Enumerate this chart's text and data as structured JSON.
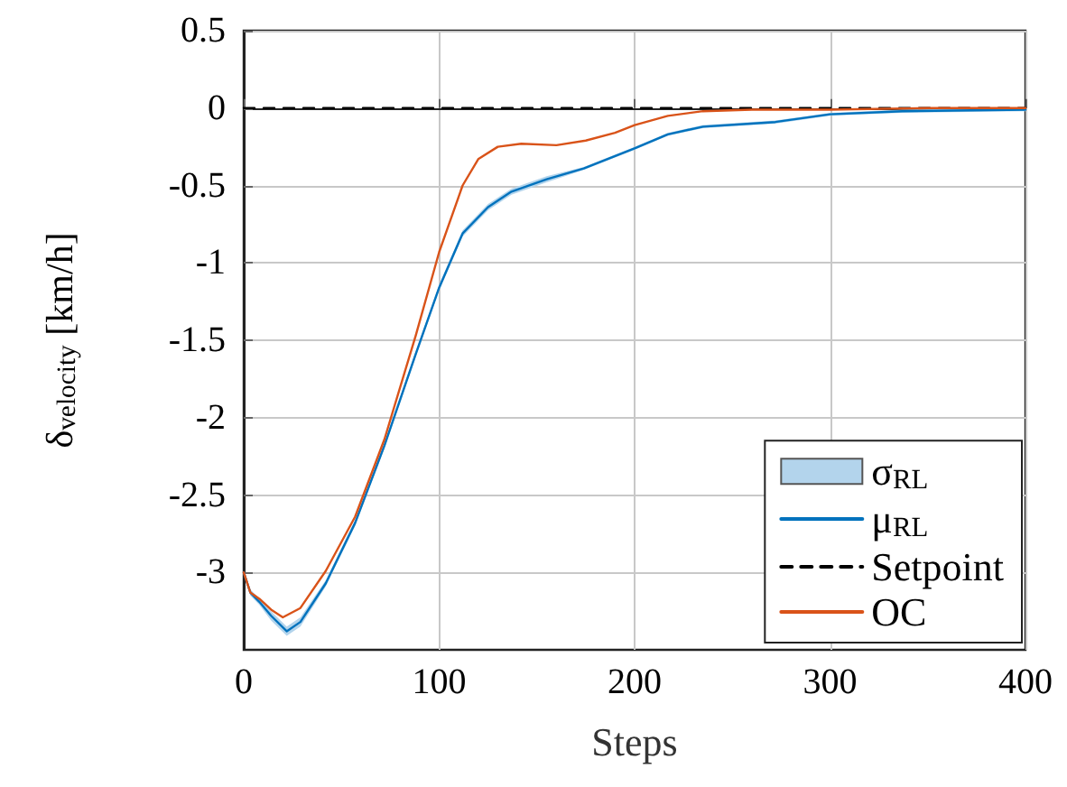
{
  "chart_data": {
    "type": "line",
    "xlabel": "Steps",
    "ylabel": "δ$_{velocity}$ [km/h]",
    "xlim": [
      0,
      400
    ],
    "xticks": [
      0,
      100,
      200,
      300,
      400
    ],
    "ylim": [
      -3.5,
      0.5
    ],
    "yticks": [
      0.5,
      0,
      -0.5,
      -1,
      -1.5,
      -2,
      -2.5,
      -3
    ],
    "grid": true,
    "legend": "bottom right",
    "series": [
      {
        "name": "σ$_{RL}$",
        "type": "area",
        "color": "#b3d4ec"
      },
      {
        "name": "μ$_{RL}$",
        "color": "#0072bd",
        "x": [
          0,
          3.4,
          8,
          14,
          22,
          29,
          42,
          57,
          72,
          88,
          100,
          112,
          125,
          137,
          155,
          174,
          200,
          217,
          235,
          272,
          300,
          337,
          400
        ],
        "values": [
          -3.0,
          -3.13,
          -3.19,
          -3.28,
          -3.38,
          -3.32,
          -3.07,
          -2.68,
          -2.18,
          -1.59,
          -1.16,
          -0.81,
          -0.64,
          -0.54,
          -0.46,
          -0.39,
          -0.26,
          -0.17,
          -0.12,
          -0.09,
          -0.04,
          -0.02,
          -0.01
        ],
        "lower": [
          -3.01,
          -3.15,
          -3.21,
          -3.31,
          -3.41,
          -3.35,
          -3.09,
          -2.7,
          -2.2,
          -1.61,
          -1.18,
          -0.83,
          -0.66,
          -0.56,
          -0.48,
          -0.4,
          -0.27,
          -0.18,
          -0.13,
          -0.1,
          -0.05,
          -0.03,
          -0.02
        ],
        "upper": [
          -2.99,
          -3.11,
          -3.17,
          -3.25,
          -3.35,
          -3.29,
          -3.05,
          -2.66,
          -2.16,
          -1.57,
          -1.14,
          -0.79,
          -0.62,
          -0.52,
          -0.44,
          -0.38,
          -0.25,
          -0.16,
          -0.11,
          -0.08,
          -0.03,
          -0.01,
          0
        ]
      },
      {
        "name": "Setpoint",
        "color": "#000000",
        "line_style": "dashed",
        "x": [
          0,
          400
        ],
        "values": [
          0,
          0
        ]
      },
      {
        "name": "OC",
        "color": "#d95319",
        "x": [
          0,
          3.4,
          8,
          14,
          20,
          29,
          42,
          57,
          72,
          88,
          100,
          112,
          120,
          130,
          142,
          160,
          175,
          190,
          200,
          217,
          235,
          260,
          300,
          350,
          400
        ],
        "values": [
          -3.0,
          -3.13,
          -3.17,
          -3.24,
          -3.29,
          -3.23,
          -2.99,
          -2.64,
          -2.14,
          -1.47,
          -0.93,
          -0.5,
          -0.33,
          -0.25,
          -0.23,
          -0.24,
          -0.21,
          -0.16,
          -0.11,
          -0.05,
          -0.02,
          -0.01,
          -0.01,
          0,
          0
        ]
      }
    ]
  }
}
